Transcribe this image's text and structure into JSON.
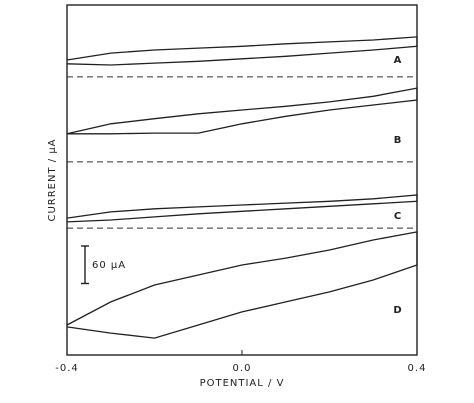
{
  "chart_data": {
    "type": "line",
    "xlabel": "POTENTIAL / V",
    "ylabel": "CURRENT / μA",
    "x": [
      -0.4,
      -0.3,
      -0.2,
      -0.1,
      0,
      0.1,
      0.2,
      0.3,
      0.4,
      0.4,
      0.3,
      0.2,
      0.1,
      0,
      -0.1,
      -0.2,
      -0.3,
      -0.4
    ],
    "xlim": [
      -0.4,
      0.4
    ],
    "xticks": [
      -0.4,
      {
        "value": 0,
        "label": "0.0"
      },
      0.4
    ],
    "ylim": [
      0,
      560
    ],
    "series": [
      {
        "name": "A",
        "color": "#222222",
        "values": [
          472,
          483,
          488,
          491,
          494,
          498,
          501,
          504,
          509,
          494,
          488,
          483,
          478,
          474,
          470,
          467,
          464,
          466
        ]
      },
      {
        "name": "B",
        "color": "#222222",
        "values": [
          354,
          370,
          378,
          386,
          392,
          398,
          405,
          414,
          427,
          408,
          400,
          392,
          382,
          370,
          355,
          355,
          354,
          354
        ]
      },
      {
        "name": "C",
        "color": "#222222",
        "values": [
          219,
          229,
          234,
          237,
          240,
          243,
          246,
          250,
          256,
          246,
          242,
          238,
          234,
          230,
          226,
          221,
          216,
          213
        ]
      },
      {
        "name": "D",
        "color": "#222222",
        "values": [
          48,
          85,
          112,
          128,
          144,
          155,
          168,
          184,
          197,
          144,
          120,
          101,
          85,
          69,
          48,
          27,
          35,
          45
        ]
      }
    ],
    "baselines": [
      445,
      309,
      203
    ],
    "scale_bar": {
      "value": 60,
      "label": "60 μA"
    }
  }
}
